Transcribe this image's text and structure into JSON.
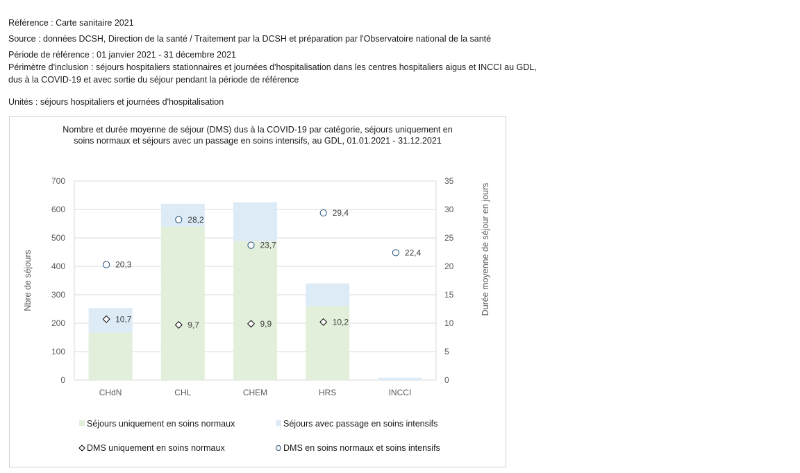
{
  "header": {
    "reference": "Référence : Carte sanitaire 2021",
    "source": "Source : données DCSH, Direction de la santé / Traitement  par la DCSH et préparation par l'Observatoire national de la santé",
    "period": "Période de référence : 01 janvier 2021 - 31 décembre 2021",
    "scope_line1": "Périmètre d'inclusion : séjours hospitaliers stationnaires et journées d'hospitalisation dans les centres hospitaliers aigus et INCCI au GDL,",
    "scope_line2": "dus à la COVID-19 et avec sortie du séjour pendant la période de référence",
    "units": "Unités : séjours hospitaliers et journées d'hospitalisation"
  },
  "colors": {
    "normal": "#e2efda",
    "intensive": "#ddebf7",
    "marker": "#1f4e79",
    "grid": "#d9d9d9",
    "axis_text": "#595959"
  },
  "chart_data": {
    "type": "bar",
    "stacked": true,
    "title_line1": "Nombre et durée moyenne de séjour (DMS) dus à la COVID-19 par catégorie, séjours uniquement en",
    "title_line2": "soins normaux et séjours avec un passage en soins intensifs, au GDL, 01.01.2021 - 31.12.2021",
    "ylabel": "Nbre de séjours",
    "y2label": "Durée moyenne de séjour en jours",
    "ylim": [
      0,
      700
    ],
    "y2lim": [
      0,
      35
    ],
    "yticks": [
      "0",
      "100",
      "200",
      "300",
      "400",
      "500",
      "600",
      "700"
    ],
    "y2ticks": [
      "0",
      "5",
      "10",
      "15",
      "20",
      "25",
      "30",
      "35"
    ],
    "grid": true,
    "legend_position": "bottom",
    "categories": [
      "CHdN",
      "CHL",
      "CHEM",
      "HRS",
      "INCCI"
    ],
    "series": [
      {
        "name": "Séjours uniquement en soins normaux",
        "kind": "bar",
        "axis": "left",
        "values": [
          167,
          540,
          488,
          260,
          0
        ]
      },
      {
        "name": "Séjours avec passage en soins intensifs",
        "kind": "bar",
        "axis": "left",
        "values": [
          86,
          80,
          137,
          80,
          8
        ]
      },
      {
        "name": "DMS uniquement en soins normaux",
        "kind": "diamond",
        "axis": "right",
        "values": [
          10.7,
          9.7,
          9.9,
          10.2,
          null
        ],
        "labels": [
          "10,7",
          "9,7",
          "9,9",
          "10,2",
          ""
        ]
      },
      {
        "name": "DMS en soins normaux et soins intensifs",
        "kind": "circle",
        "axis": "right",
        "values": [
          20.3,
          28.2,
          23.7,
          29.4,
          22.4
        ],
        "labels": [
          "20,3",
          "28,2",
          "23,7",
          "29,4",
          "22,4"
        ]
      }
    ]
  }
}
